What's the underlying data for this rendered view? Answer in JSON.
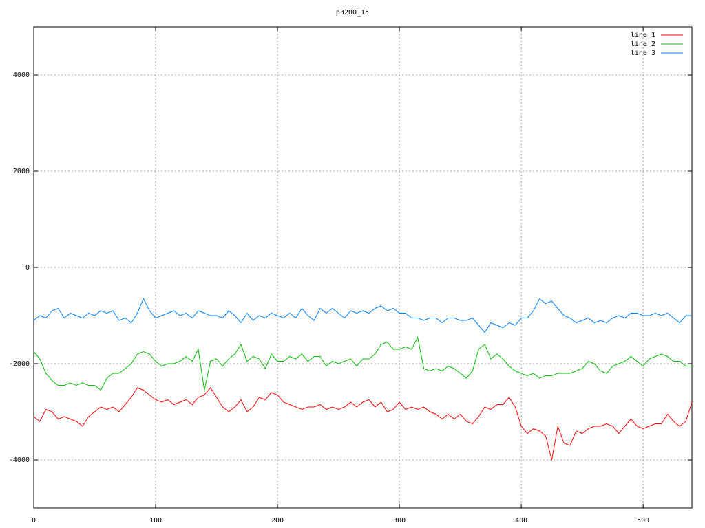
{
  "chart_data": {
    "type": "line",
    "title": "p3200_15",
    "x": [
      0,
      5,
      10,
      15,
      20,
      25,
      30,
      35,
      40,
      45,
      50,
      55,
      60,
      65,
      70,
      75,
      80,
      85,
      90,
      95,
      100,
      105,
      110,
      115,
      120,
      125,
      130,
      135,
      140,
      145,
      150,
      155,
      160,
      165,
      170,
      175,
      180,
      185,
      190,
      195,
      200,
      205,
      210,
      215,
      220,
      225,
      230,
      235,
      240,
      245,
      250,
      255,
      260,
      265,
      270,
      275,
      280,
      285,
      290,
      295,
      300,
      305,
      310,
      315,
      320,
      325,
      330,
      335,
      340,
      345,
      350,
      355,
      360,
      365,
      370,
      375,
      380,
      385,
      390,
      395,
      400,
      405,
      410,
      415,
      420,
      425,
      430,
      435,
      440,
      445,
      450,
      455,
      460,
      465,
      470,
      475,
      480,
      485,
      490,
      495,
      500,
      505,
      510,
      515,
      520,
      525,
      530,
      535,
      540
    ],
    "series": [
      {
        "name": "line 1",
        "color": "#ff0000",
        "values": [
          -3100,
          -3200,
          -2950,
          -3000,
          -3150,
          -3100,
          -3150,
          -3200,
          -3300,
          -3100,
          -3000,
          -2900,
          -2950,
          -2900,
          -3000,
          -2850,
          -2700,
          -2500,
          -2550,
          -2650,
          -2750,
          -2800,
          -2750,
          -2850,
          -2800,
          -2750,
          -2850,
          -2700,
          -2650,
          -2500,
          -2700,
          -2900,
          -3000,
          -2900,
          -2750,
          -3000,
          -2900,
          -2700,
          -2750,
          -2600,
          -2650,
          -2800,
          -2850,
          -2900,
          -2950,
          -2900,
          -2900,
          -2850,
          -2950,
          -2900,
          -2950,
          -2900,
          -2800,
          -2900,
          -2800,
          -2750,
          -2900,
          -2800,
          -3000,
          -2950,
          -2800,
          -2950,
          -2900,
          -2950,
          -2900,
          -3000,
          -3050,
          -3150,
          -3050,
          -3150,
          -3050,
          -3200,
          -3250,
          -3100,
          -2900,
          -2950,
          -2850,
          -2850,
          -2700,
          -2900,
          -3300,
          -3450,
          -3350,
          -3400,
          -3500,
          -4000,
          -3300,
          -3650,
          -3700,
          -3400,
          -3450,
          -3350,
          -3300,
          -3300,
          -3250,
          -3300,
          -3450,
          -3300,
          -3150,
          -3300,
          -3350,
          -3300,
          -3250,
          -3250,
          -3050,
          -3200,
          -3300,
          -3200,
          -2800
        ]
      },
      {
        "name": "line 2",
        "color": "#00c000",
        "values": [
          -1750,
          -1900,
          -2200,
          -2350,
          -2450,
          -2450,
          -2400,
          -2450,
          -2400,
          -2450,
          -2450,
          -2550,
          -2300,
          -2200,
          -2200,
          -2100,
          -2000,
          -1800,
          -1750,
          -1800,
          -1950,
          -2050,
          -2000,
          -2000,
          -1950,
          -1850,
          -1950,
          -1700,
          -2550,
          -1950,
          -1900,
          -2050,
          -1900,
          -1800,
          -1600,
          -1950,
          -1850,
          -1900,
          -2100,
          -1800,
          -1950,
          -1950,
          -1850,
          -1900,
          -1800,
          -1950,
          -1850,
          -1850,
          -2050,
          -1950,
          -2000,
          -1950,
          -1900,
          -2050,
          -1900,
          -1900,
          -1800,
          -1600,
          -1550,
          -1700,
          -1700,
          -1650,
          -1700,
          -1450,
          -2100,
          -2150,
          -2100,
          -2150,
          -2050,
          -2100,
          -2200,
          -2300,
          -2150,
          -1700,
          -1600,
          -1900,
          -1800,
          -1900,
          -2050,
          -2150,
          -2200,
          -2250,
          -2200,
          -2300,
          -2250,
          -2250,
          -2200,
          -2200,
          -2200,
          -2150,
          -2100,
          -1950,
          -2000,
          -2150,
          -2200,
          -2050,
          -2000,
          -1950,
          -1850,
          -1950,
          -2050,
          -1900,
          -1850,
          -1800,
          -1850,
          -1950,
          -1950,
          -2050,
          -2050
        ]
      },
      {
        "name": "line 3",
        "color": "#0080ff",
        "values": [
          -1100,
          -1000,
          -1050,
          -900,
          -850,
          -1050,
          -950,
          -1000,
          -1050,
          -950,
          -1000,
          -900,
          -950,
          -900,
          -1100,
          -1050,
          -1150,
          -950,
          -650,
          -900,
          -1050,
          -1000,
          -950,
          -900,
          -1000,
          -950,
          -1050,
          -900,
          -950,
          -1000,
          -1000,
          -1050,
          -900,
          -1000,
          -1150,
          -950,
          -1100,
          -1000,
          -1050,
          -950,
          -1000,
          -1050,
          -950,
          -1050,
          -850,
          -1000,
          -1100,
          -850,
          -950,
          -850,
          -950,
          -1050,
          -900,
          -950,
          -900,
          -950,
          -850,
          -800,
          -900,
          -850,
          -950,
          -950,
          -1050,
          -1050,
          -1100,
          -1050,
          -1050,
          -1150,
          -1050,
          -1050,
          -1100,
          -1100,
          -1050,
          -1200,
          -1350,
          -1150,
          -1200,
          -1250,
          -1150,
          -1200,
          -1050,
          -1050,
          -900,
          -650,
          -750,
          -700,
          -850,
          -1000,
          -1050,
          -1150,
          -1100,
          -1050,
          -1150,
          -1100,
          -1150,
          -1050,
          -1000,
          -1050,
          -950,
          -950,
          -1000,
          -1000,
          -950,
          -1000,
          -950,
          -1050,
          -1150,
          -1000,
          -1000
        ]
      }
    ],
    "xlim": [
      0,
      540
    ],
    "xticks": [
      0,
      100,
      200,
      300,
      400,
      500
    ],
    "ylim": [
      -5000,
      5000
    ],
    "yticks": [
      -4000,
      -2000,
      0,
      2000,
      4000
    ],
    "grid": true,
    "legend": "top right"
  }
}
